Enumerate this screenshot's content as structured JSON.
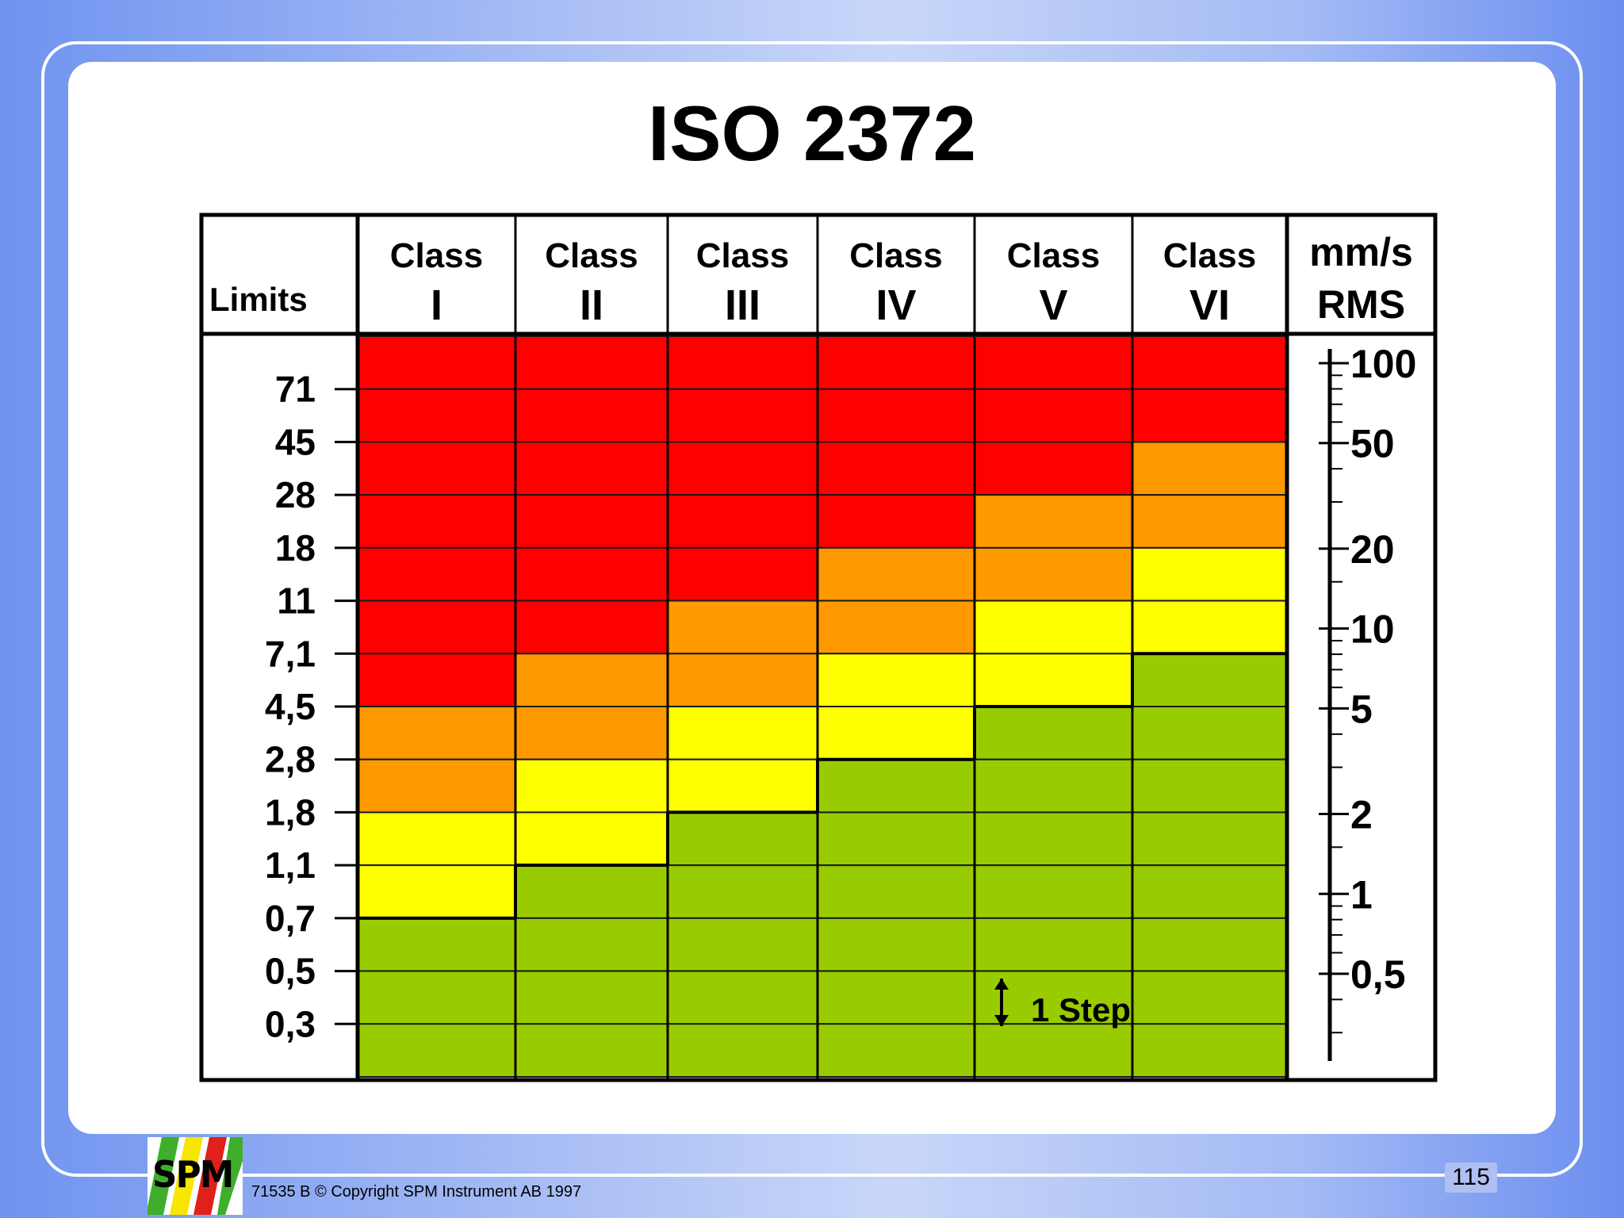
{
  "title": "ISO 2372",
  "chart_data": {
    "type": "heatmap",
    "title": "ISO 2372",
    "row_header": "Limits",
    "columns": [
      {
        "label": "Class",
        "numeral": "I"
      },
      {
        "label": "Class",
        "numeral": "II"
      },
      {
        "label": "Class",
        "numeral": "III"
      },
      {
        "label": "Class",
        "numeral": "IV"
      },
      {
        "label": "Class",
        "numeral": "V"
      },
      {
        "label": "Class",
        "numeral": "VI"
      }
    ],
    "unit_header": [
      "mm/s",
      "RMS"
    ],
    "limits": [
      "71",
      "45",
      "28",
      "18",
      "11",
      "7,1",
      "4,5",
      "2,8",
      "1,8",
      "1,1",
      "0,7",
      "0,5",
      "0,3"
    ],
    "levels": {
      "red": "#ff0000",
      "orange": "#ff9900",
      "yellow": "#ffff00",
      "green": "#99cc00"
    },
    "cells": [
      [
        "red",
        "red",
        "red",
        "red",
        "red",
        "red"
      ],
      [
        "red",
        "red",
        "red",
        "red",
        "red",
        "red"
      ],
      [
        "red",
        "red",
        "red",
        "red",
        "red",
        "orange"
      ],
      [
        "red",
        "red",
        "red",
        "red",
        "orange",
        "orange"
      ],
      [
        "red",
        "red",
        "red",
        "orange",
        "orange",
        "yellow"
      ],
      [
        "red",
        "red",
        "orange",
        "orange",
        "yellow",
        "yellow"
      ],
      [
        "red",
        "orange",
        "orange",
        "yellow",
        "yellow",
        "green"
      ],
      [
        "orange",
        "orange",
        "yellow",
        "yellow",
        "green",
        "green"
      ],
      [
        "orange",
        "yellow",
        "yellow",
        "green",
        "green",
        "green"
      ],
      [
        "yellow",
        "yellow",
        "green",
        "green",
        "green",
        "green"
      ],
      [
        "yellow",
        "green",
        "green",
        "green",
        "green",
        "green"
      ],
      [
        "green",
        "green",
        "green",
        "green",
        "green",
        "green"
      ],
      [
        "green",
        "green",
        "green",
        "green",
        "green",
        "green"
      ],
      [
        "green",
        "green",
        "green",
        "green",
        "green",
        "green"
      ]
    ],
    "scale": {
      "type": "log",
      "range": [
        0.3,
        100
      ],
      "labels": [
        {
          "value": 100,
          "text": "100"
        },
        {
          "value": 50,
          "text": "50"
        },
        {
          "value": 20,
          "text": "20"
        },
        {
          "value": 10,
          "text": "10"
        },
        {
          "value": 5,
          "text": "5"
        },
        {
          "value": 2,
          "text": "2"
        },
        {
          "value": 1,
          "text": "1"
        },
        {
          "value": 0.5,
          "text": "0,5"
        }
      ]
    },
    "annotation": "1 Step"
  },
  "footer": {
    "copyright": "71535 B  © Copyright SPM Instrument AB 1997",
    "logo_text": "SPM",
    "page_number": "115"
  }
}
